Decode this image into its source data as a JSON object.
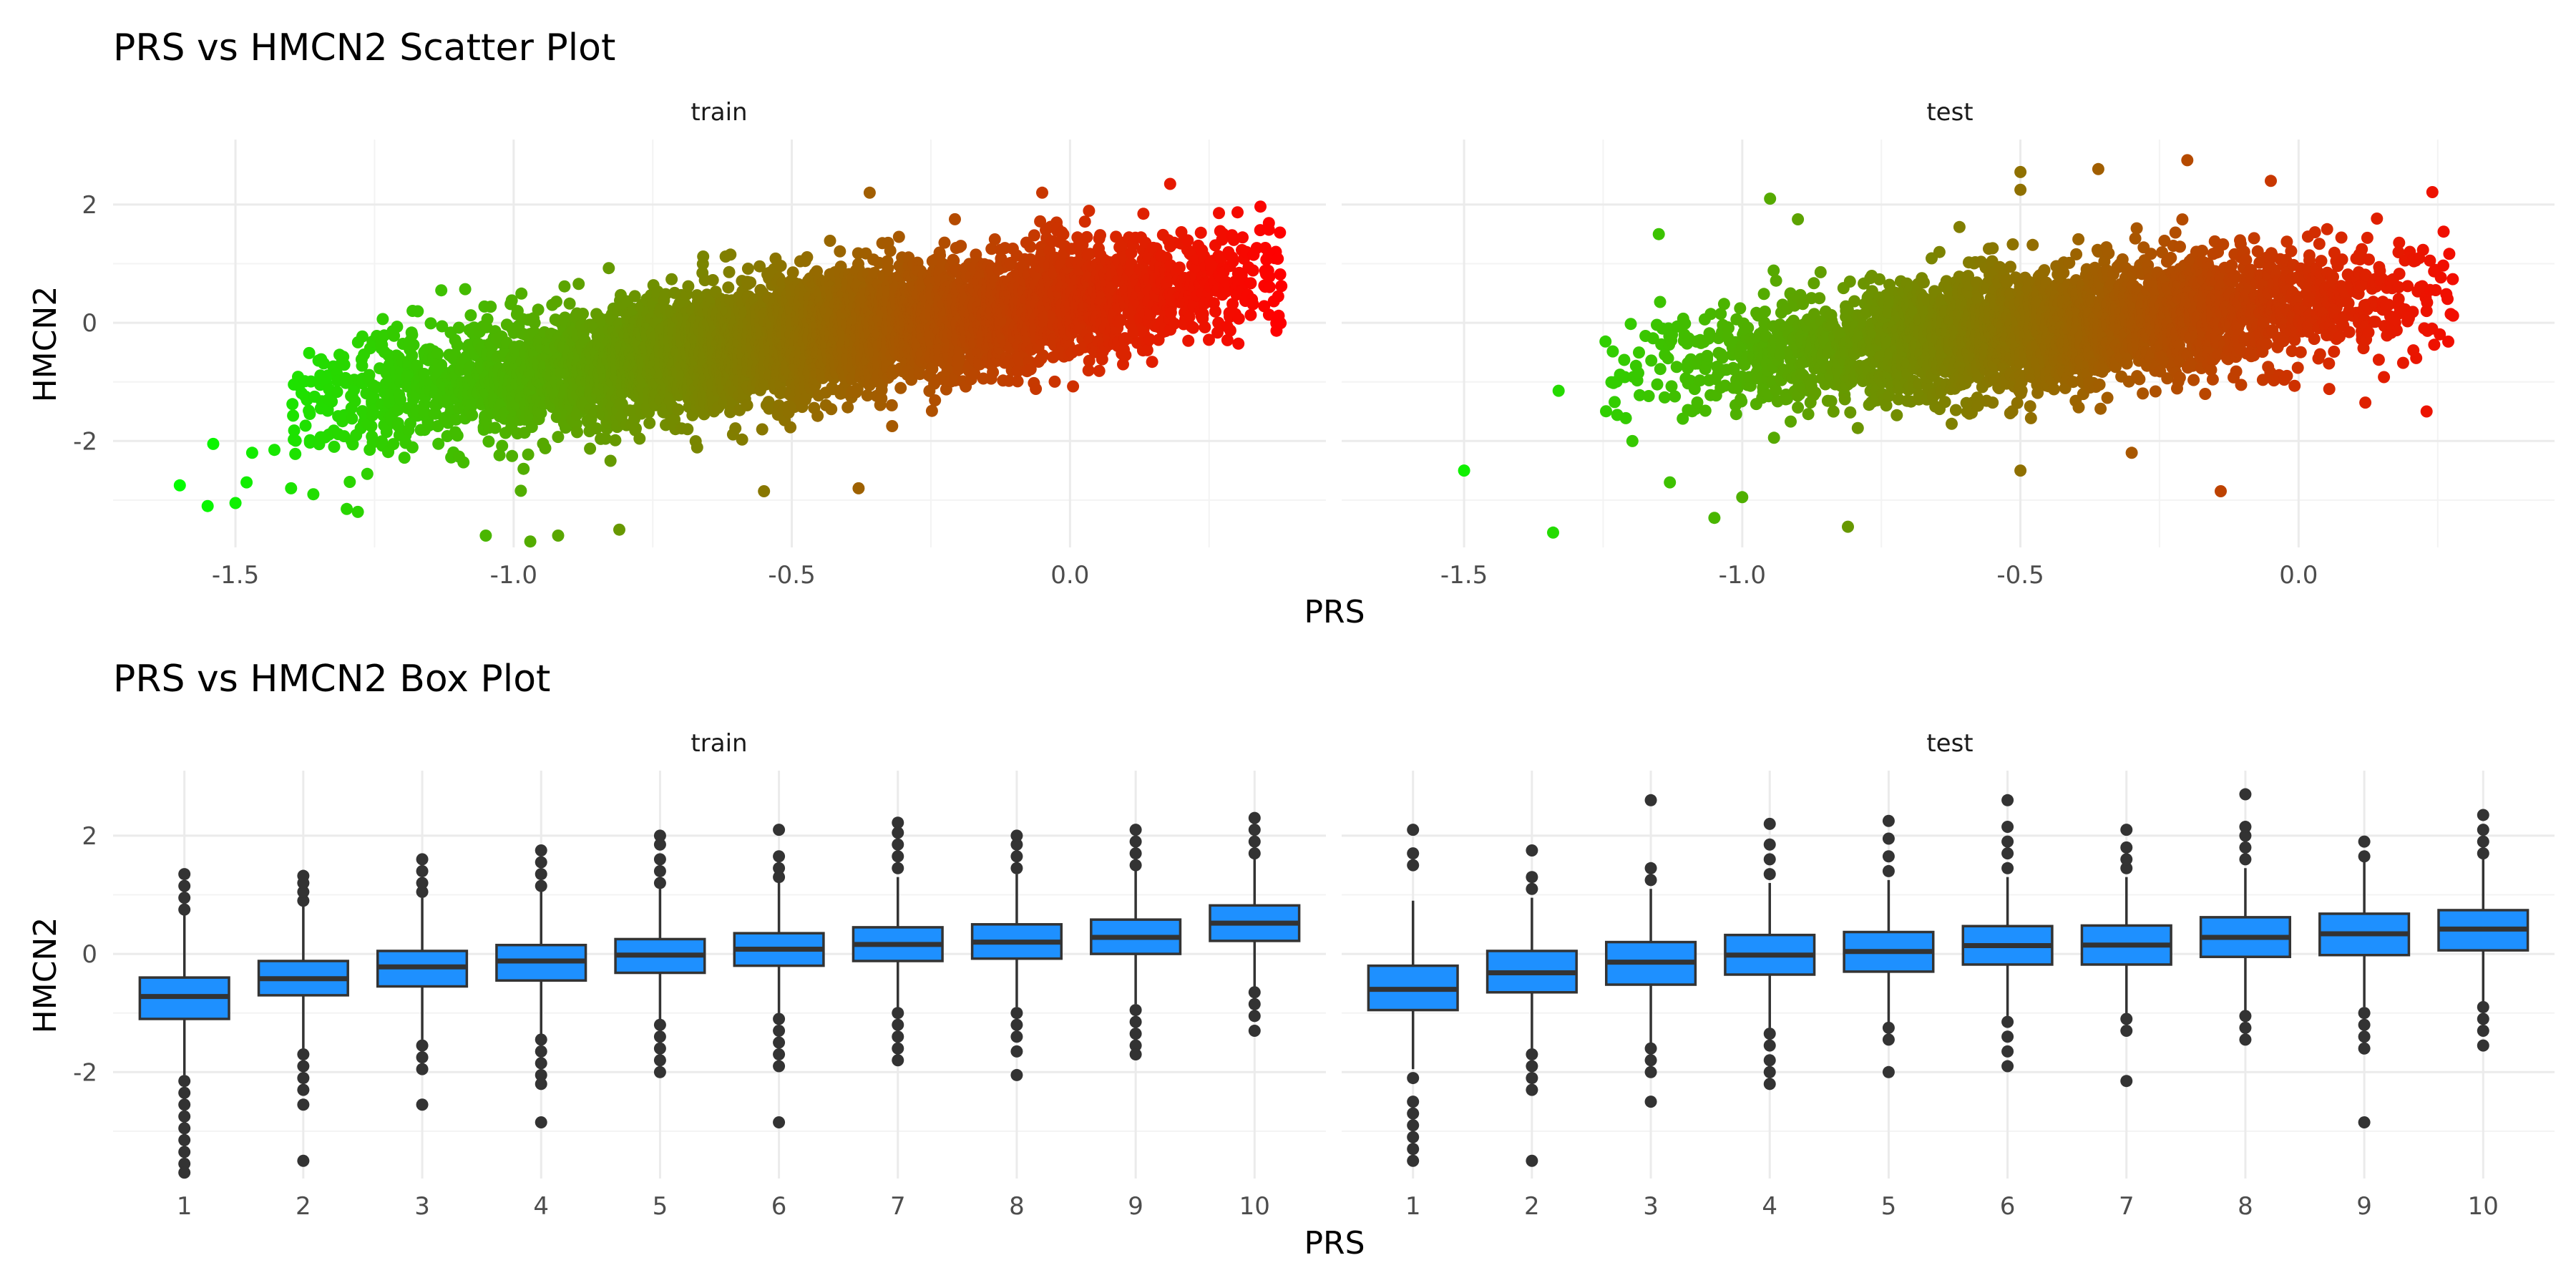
{
  "chart_data": [
    {
      "type": "scatter",
      "title": "PRS vs HMCN2 Scatter Plot",
      "xlabel": "PRS",
      "ylabel": "HMCN2",
      "facets": [
        "train",
        "test"
      ],
      "xlim": [
        -1.72,
        0.46
      ],
      "ylim": [
        -3.8,
        3.1
      ],
      "x_ticks": [
        -1.5,
        -1.0,
        -0.5,
        0.0
      ],
      "x_tick_labels": [
        "-1.5",
        "-1.0",
        "-0.5",
        "0.0"
      ],
      "y_ticks": [
        -2,
        0,
        2
      ],
      "y_tick_labels": [
        "-2",
        "0",
        "2"
      ],
      "grid": true,
      "color_gradient": [
        "#00ff00",
        "#ff0000"
      ],
      "train": {
        "approx_fit": {
          "intercept": 0.35,
          "slope": 1.25
        },
        "x_range_core": [
          -1.25,
          0.3
        ],
        "extreme_points": [
          {
            "x": -1.6,
            "y": -2.75
          },
          {
            "x": -1.55,
            "y": -3.1
          },
          {
            "x": -1.5,
            "y": -3.05
          },
          {
            "x": -1.48,
            "y": -2.7
          },
          {
            "x": -1.47,
            "y": -2.2
          },
          {
            "x": -1.54,
            "y": -2.05
          },
          {
            "x": -1.43,
            "y": -2.15
          },
          {
            "x": -1.4,
            "y": -2.8
          },
          {
            "x": -1.36,
            "y": -2.9
          },
          {
            "x": -1.3,
            "y": -3.15
          },
          {
            "x": -1.28,
            "y": -3.2
          },
          {
            "x": -1.13,
            "y": 0.55
          },
          {
            "x": -1.05,
            "y": -3.6
          },
          {
            "x": -0.97,
            "y": -3.7
          },
          {
            "x": -0.92,
            "y": -3.6
          },
          {
            "x": -0.81,
            "y": -3.5
          },
          {
            "x": -0.55,
            "y": -2.85
          },
          {
            "x": -0.38,
            "y": -2.8
          },
          {
            "x": -0.36,
            "y": 2.2
          },
          {
            "x": -0.05,
            "y": 2.2
          },
          {
            "x": 0.18,
            "y": 2.35
          },
          {
            "x": 0.27,
            "y": 1.55
          },
          {
            "x": 0.33,
            "y": 1.15
          },
          {
            "x": 0.37,
            "y": 1.2
          }
        ]
      },
      "test": {
        "approx_fit": {
          "intercept": 0.32,
          "slope": 0.95
        },
        "x_range_core": [
          -1.1,
          0.2
        ],
        "extreme_points": [
          {
            "x": -1.5,
            "y": -2.5
          },
          {
            "x": -1.34,
            "y": -3.55
          },
          {
            "x": -1.33,
            "y": -1.15
          },
          {
            "x": -1.15,
            "y": 1.5
          },
          {
            "x": -1.13,
            "y": -2.7
          },
          {
            "x": -1.05,
            "y": -3.3
          },
          {
            "x": -1.0,
            "y": -2.95
          },
          {
            "x": -0.95,
            "y": 2.1
          },
          {
            "x": -0.9,
            "y": 1.75
          },
          {
            "x": -0.81,
            "y": -3.45
          },
          {
            "x": -0.5,
            "y": 2.25
          },
          {
            "x": -0.5,
            "y": -2.5
          },
          {
            "x": -0.5,
            "y": 2.55
          },
          {
            "x": -0.36,
            "y": 2.6
          },
          {
            "x": -0.3,
            "y": -2.2
          },
          {
            "x": -0.2,
            "y": 2.75
          },
          {
            "x": -0.14,
            "y": -2.85
          },
          {
            "x": -0.05,
            "y": 2.4
          },
          {
            "x": 0.12,
            "y": -1.35
          },
          {
            "x": 0.2,
            "y": 1.2
          },
          {
            "x": 0.23,
            "y": 0.2
          },
          {
            "x": 0.23,
            "y": -1.5
          },
          {
            "x": 0.24,
            "y": -0.1
          }
        ]
      }
    },
    {
      "type": "box",
      "title": "PRS vs HMCN2 Box Plot",
      "xlabel": "PRS",
      "ylabel": "HMCN2",
      "facets": [
        "train",
        "test"
      ],
      "categories": [
        "1",
        "2",
        "3",
        "4",
        "5",
        "6",
        "7",
        "8",
        "9",
        "10"
      ],
      "ylim": [
        -3.8,
        3.1
      ],
      "y_ticks": [
        -2,
        0,
        2
      ],
      "y_tick_labels": [
        "-2",
        "0",
        "2"
      ],
      "grid": true,
      "box_fill": "#1e90ff",
      "box_stroke": "#333333",
      "train": [
        {
          "q1": -1.1,
          "median": -0.72,
          "q3": -0.4,
          "wlo": -2.05,
          "whi": 0.65,
          "outliers": [
            0.75,
            0.95,
            1.15,
            1.35,
            -2.15,
            -2.35,
            -2.55,
            -2.75,
            -2.95,
            -3.15,
            -3.35,
            -3.55,
            -3.7
          ]
        },
        {
          "q1": -0.7,
          "median": -0.42,
          "q3": -0.12,
          "wlo": -1.6,
          "whi": 0.8,
          "outliers": [
            0.9,
            1.05,
            1.2,
            1.32,
            -1.7,
            -1.9,
            -2.1,
            -2.3,
            -2.55,
            -3.5
          ]
        },
        {
          "q1": -0.55,
          "median": -0.22,
          "q3": 0.05,
          "wlo": -1.45,
          "whi": 0.95,
          "outliers": [
            1.05,
            1.2,
            1.4,
            1.6,
            -1.55,
            -1.75,
            -1.95,
            -2.55
          ]
        },
        {
          "q1": -0.45,
          "median": -0.12,
          "q3": 0.15,
          "wlo": -1.35,
          "whi": 1.05,
          "outliers": [
            1.15,
            1.35,
            1.55,
            1.75,
            -1.45,
            -1.65,
            -1.85,
            -2.05,
            -2.2,
            -2.85
          ]
        },
        {
          "q1": -0.32,
          "median": -0.02,
          "q3": 0.25,
          "wlo": -1.1,
          "whi": 1.1,
          "outliers": [
            1.2,
            1.4,
            1.6,
            1.85,
            2.0,
            -1.2,
            -1.4,
            -1.6,
            -1.8,
            -2.0
          ]
        },
        {
          "q1": -0.2,
          "median": 0.08,
          "q3": 0.35,
          "wlo": -1.0,
          "whi": 1.2,
          "outliers": [
            1.3,
            1.45,
            1.65,
            2.1,
            -1.1,
            -1.3,
            -1.5,
            -1.7,
            -1.9,
            -2.85
          ]
        },
        {
          "q1": -0.12,
          "median": 0.16,
          "q3": 0.45,
          "wlo": -0.95,
          "whi": 1.3,
          "outliers": [
            1.45,
            1.65,
            1.85,
            2.05,
            2.22,
            -1.0,
            -1.2,
            -1.4,
            -1.6,
            -1.8
          ]
        },
        {
          "q1": -0.08,
          "median": 0.2,
          "q3": 0.5,
          "wlo": -0.9,
          "whi": 1.35,
          "outliers": [
            1.45,
            1.65,
            1.85,
            2.0,
            -1.0,
            -1.2,
            -1.4,
            -1.65,
            -2.05
          ]
        },
        {
          "q1": 0.0,
          "median": 0.28,
          "q3": 0.58,
          "wlo": -0.85,
          "whi": 1.4,
          "outliers": [
            1.5,
            1.7,
            1.9,
            2.1,
            -0.95,
            -1.15,
            -1.35,
            -1.55,
            -1.7
          ]
        },
        {
          "q1": 0.22,
          "median": 0.52,
          "q3": 0.82,
          "wlo": -0.55,
          "whi": 1.6,
          "outliers": [
            1.7,
            1.9,
            2.1,
            2.3,
            -0.65,
            -0.85,
            -1.05,
            -1.3
          ]
        }
      ],
      "test": [
        {
          "q1": -0.95,
          "median": -0.6,
          "q3": -0.2,
          "wlo": -1.95,
          "whi": 0.9,
          "outliers": [
            1.5,
            1.7,
            2.1,
            -2.1,
            -2.5,
            -2.7,
            -2.9,
            -3.1,
            -3.3,
            -3.5
          ]
        },
        {
          "q1": -0.65,
          "median": -0.32,
          "q3": 0.05,
          "wlo": -1.6,
          "whi": 0.95,
          "outliers": [
            1.1,
            1.3,
            1.75,
            -1.7,
            -1.9,
            -2.1,
            -2.3,
            -3.5
          ]
        },
        {
          "q1": -0.52,
          "median": -0.14,
          "q3": 0.2,
          "wlo": -1.5,
          "whi": 1.1,
          "outliers": [
            1.25,
            1.45,
            2.6,
            -1.6,
            -1.8,
            -2.0,
            -2.5
          ]
        },
        {
          "q1": -0.35,
          "median": -0.02,
          "q3": 0.32,
          "wlo": -1.25,
          "whi": 1.2,
          "outliers": [
            1.35,
            1.6,
            1.85,
            2.2,
            -1.35,
            -1.55,
            -1.8,
            -2.0,
            -2.2
          ]
        },
        {
          "q1": -0.3,
          "median": 0.04,
          "q3": 0.37,
          "wlo": -1.15,
          "whi": 1.25,
          "outliers": [
            1.4,
            1.65,
            1.95,
            2.25,
            -1.25,
            -1.45,
            -2.0
          ]
        },
        {
          "q1": -0.18,
          "median": 0.14,
          "q3": 0.47,
          "wlo": -1.05,
          "whi": 1.3,
          "outliers": [
            1.45,
            1.7,
            1.9,
            2.15,
            2.6,
            -1.15,
            -1.4,
            -1.65,
            -1.9
          ]
        },
        {
          "q1": -0.18,
          "median": 0.15,
          "q3": 0.48,
          "wlo": -1.0,
          "whi": 1.3,
          "outliers": [
            1.45,
            1.6,
            1.8,
            2.1,
            -1.1,
            -1.3,
            -2.15
          ]
        },
        {
          "q1": -0.05,
          "median": 0.28,
          "q3": 0.62,
          "wlo": -0.95,
          "whi": 1.45,
          "outliers": [
            1.6,
            1.8,
            2.0,
            2.15,
            2.7,
            -1.05,
            -1.25,
            -1.45
          ]
        },
        {
          "q1": -0.02,
          "median": 0.34,
          "q3": 0.68,
          "wlo": -0.9,
          "whi": 1.55,
          "outliers": [
            1.65,
            1.9,
            -1.0,
            -1.2,
            -1.4,
            -1.6,
            -2.85
          ]
        },
        {
          "q1": 0.06,
          "median": 0.42,
          "q3": 0.74,
          "wlo": -0.8,
          "whi": 1.6,
          "outliers": [
            1.7,
            1.9,
            2.1,
            2.35,
            -0.9,
            -1.1,
            -1.3,
            -1.55
          ]
        }
      ]
    }
  ]
}
